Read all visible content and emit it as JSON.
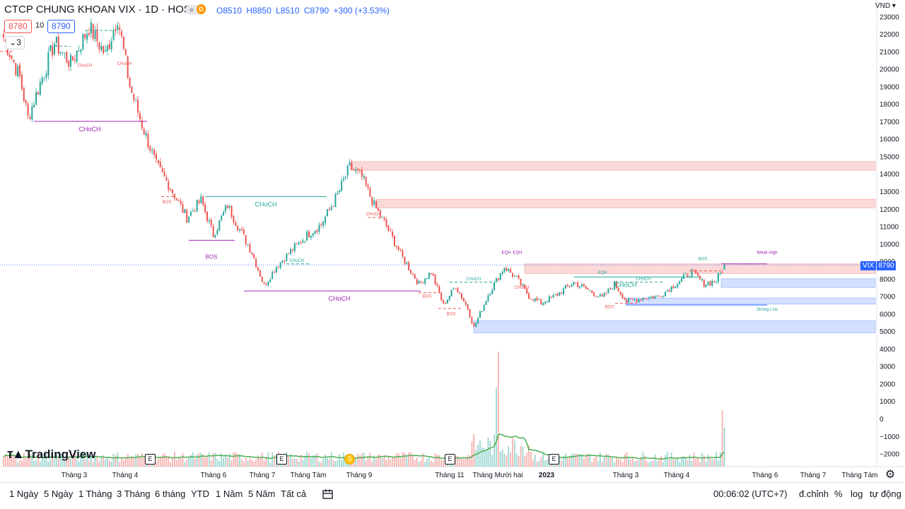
{
  "header": {
    "title": "CTCP CHUNG KHOAN VIX · 1D · HOSE",
    "badge": "D",
    "ohlc": {
      "open": "O8510",
      "high": "H8850",
      "low": "L8510",
      "close": "C8790",
      "change": "+300 (+3.53%)"
    },
    "sell_price": "8780",
    "quantity": "10",
    "buy_price": "8790",
    "toggle": "3"
  },
  "currency": "VND",
  "price_tag": {
    "symbol": "VIX",
    "value": "8790"
  },
  "logo": "TradingView",
  "bottom_bar": {
    "ranges": [
      "1 Ngày",
      "5 Ngày",
      "1 Tháng",
      "3 Tháng",
      "6 tháng",
      "YTD",
      "1 Năm",
      "5 Năm",
      "Tất cả"
    ],
    "time": "00:06:02 (UTC+7)",
    "adjust": "đ.chỉnh",
    "percent": "%",
    "log": "log",
    "auto": "tự động"
  },
  "events": {
    "earnings": "E",
    "split": "S"
  },
  "chart_data": {
    "type": "candlestick",
    "symbol": "VIX",
    "y_axis": {
      "ticks": [
        -2000,
        -1000,
        0,
        1000,
        2000,
        3000,
        4000,
        5000,
        6000,
        7000,
        8000,
        9000,
        10000,
        11000,
        12000,
        13000,
        14000,
        15000,
        16000,
        17000,
        18000,
        19000,
        20000,
        21000,
        22000,
        23000
      ],
      "tick_labels": [
        "−2000",
        "−1000",
        "0",
        "1000",
        "2000",
        "3000",
        "4000",
        "5000",
        "6000",
        "7000",
        "8000",
        "9000",
        "10000",
        "11000",
        "12000",
        "13000",
        "14000",
        "15000",
        "16000",
        "17000",
        "18000",
        "19000",
        "20000",
        "21000",
        "22000",
        "23000"
      ]
    },
    "x_axis": {
      "labels": [
        "Tháng 3",
        "Tháng 4",
        "Tháng 6",
        "Tháng 7",
        "Tháng Tám",
        "Tháng 9",
        "Tháng 11",
        "Tháng Mười hai",
        "2023",
        "Tháng 3",
        "Tháng 4",
        "Tháng 6",
        "Tháng 7",
        "Tháng Tám"
      ]
    },
    "anchors": [
      {
        "d": 0,
        "p": 21800
      },
      {
        "d": 8,
        "p": 19500
      },
      {
        "d": 12,
        "p": 17200
      },
      {
        "d": 25,
        "p": 21500
      },
      {
        "d": 33,
        "p": 20300
      },
      {
        "d": 42,
        "p": 22400
      },
      {
        "d": 50,
        "p": 20800
      },
      {
        "d": 56,
        "p": 23000
      },
      {
        "d": 62,
        "p": 19000
      },
      {
        "d": 68,
        "p": 16800
      },
      {
        "d": 75,
        "p": 14500
      },
      {
        "d": 82,
        "p": 13200
      },
      {
        "d": 90,
        "p": 11500
      },
      {
        "d": 97,
        "p": 12500
      },
      {
        "d": 103,
        "p": 10500
      },
      {
        "d": 110,
        "p": 12200
      },
      {
        "d": 116,
        "p": 10800
      },
      {
        "d": 122,
        "p": 9500
      },
      {
        "d": 128,
        "p": 7600
      },
      {
        "d": 134,
        "p": 8700
      },
      {
        "d": 142,
        "p": 9700
      },
      {
        "d": 150,
        "p": 10600
      },
      {
        "d": 156,
        "p": 11100
      },
      {
        "d": 164,
        "p": 12800
      },
      {
        "d": 170,
        "p": 14400
      },
      {
        "d": 176,
        "p": 13800
      },
      {
        "d": 182,
        "p": 12200
      },
      {
        "d": 188,
        "p": 11000
      },
      {
        "d": 196,
        "p": 9200
      },
      {
        "d": 204,
        "p": 7700
      },
      {
        "d": 210,
        "p": 8400
      },
      {
        "d": 216,
        "p": 6500
      },
      {
        "d": 222,
        "p": 7600
      },
      {
        "d": 228,
        "p": 6300
      },
      {
        "d": 231,
        "p": 5200
      },
      {
        "d": 238,
        "p": 7100
      },
      {
        "d": 246,
        "p": 8700
      },
      {
        "d": 252,
        "p": 8000
      },
      {
        "d": 258,
        "p": 7000
      },
      {
        "d": 264,
        "p": 6600
      },
      {
        "d": 272,
        "p": 7100
      },
      {
        "d": 280,
        "p": 7800
      },
      {
        "d": 288,
        "p": 7300
      },
      {
        "d": 294,
        "p": 6900
      },
      {
        "d": 300,
        "p": 7700
      },
      {
        "d": 306,
        "p": 6700
      },
      {
        "d": 314,
        "p": 6900
      },
      {
        "d": 322,
        "p": 7000
      },
      {
        "d": 330,
        "p": 7700
      },
      {
        "d": 338,
        "p": 8400
      },
      {
        "d": 344,
        "p": 7700
      },
      {
        "d": 350,
        "p": 7900
      },
      {
        "d": 353,
        "p": 8510
      },
      {
        "d": 354,
        "p": 8790
      }
    ],
    "last": {
      "open": 8510,
      "high": 8850,
      "low": 8510,
      "close": 8790
    },
    "zones": [
      {
        "type": "supply",
        "from": 14200,
        "to": 14700
      },
      {
        "type": "supply",
        "from": 12050,
        "to": 12550
      },
      {
        "type": "supply",
        "from": 8300,
        "to": 8850
      },
      {
        "type": "demand",
        "from": 7500,
        "to": 8000
      },
      {
        "type": "demand",
        "from": 6550,
        "to": 6900
      },
      {
        "type": "demand",
        "from": 4900,
        "to": 5600
      }
    ],
    "structure_labels": [
      "CHoCH",
      "CHoCH",
      "CHoCH",
      "CHoCH",
      "CHoCH",
      "CHoCH",
      "CHoCH",
      "CHoCH",
      "CHoCH",
      "CHoCH",
      "CHoCH",
      "BOS",
      "BOS",
      "BOS",
      "BOS",
      "BOS",
      "BOS",
      "EQH",
      "EQH",
      "EQH",
      "Weak High",
      "Strong Low"
    ],
    "volume_ma_color": "#4caf50",
    "up_color": "#26a69a",
    "down_color": "#ef5350"
  }
}
